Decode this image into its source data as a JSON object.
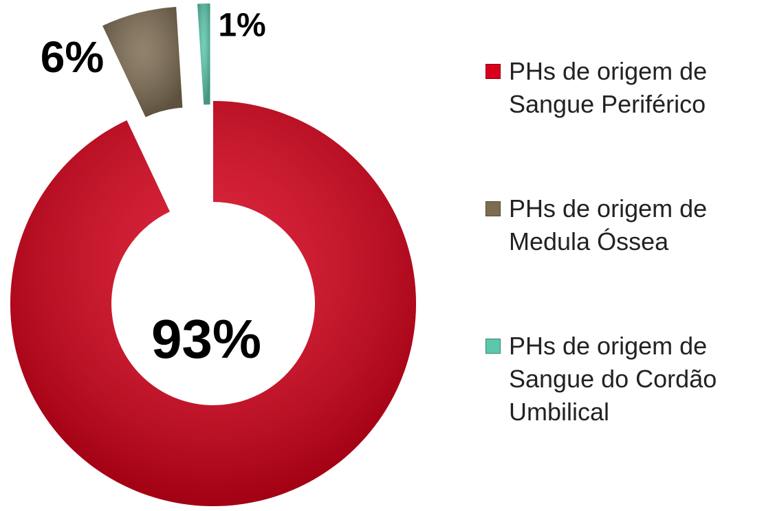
{
  "chart_data": {
    "type": "donut",
    "categories": [
      "PHs de origem de Sangue Periférico",
      "PHs de origem de Medula Óssea",
      "PHs de origem de Sangue do Cordão Umbilical"
    ],
    "values": [
      93,
      6,
      1
    ],
    "value_labels": [
      "93%",
      "6%",
      "1%"
    ],
    "colors": [
      "#d8001a",
      "#7d6c52",
      "#5cc7ad"
    ]
  }
}
